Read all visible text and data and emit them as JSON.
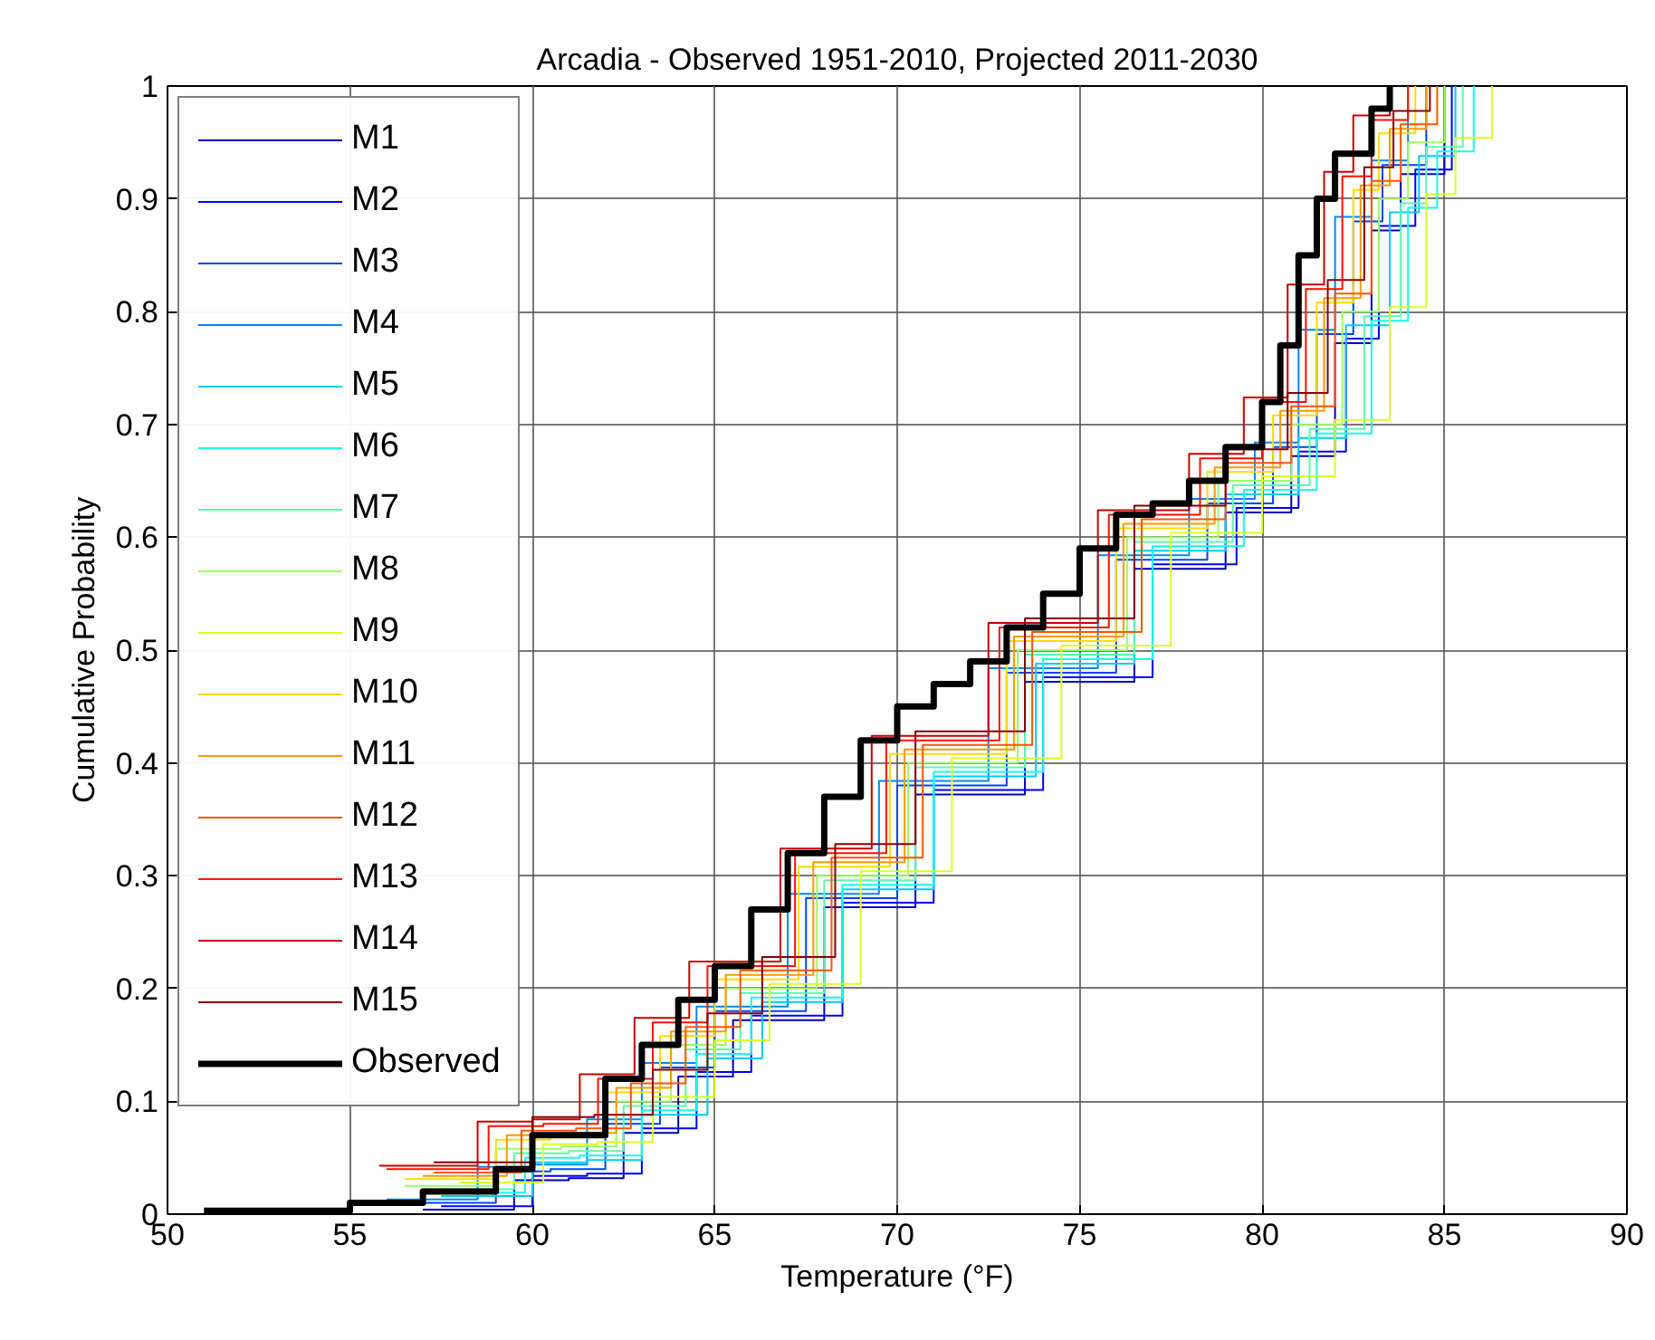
{
  "chart_data": {
    "type": "step",
    "title": "Arcadia - Observed 1951-2010, Projected 2011-2030",
    "xlabel": "Temperature (°F)",
    "ylabel": "Cumulative Probability",
    "xlim": [
      50,
      90
    ],
    "xticks": [
      50,
      55,
      60,
      65,
      70,
      75,
      80,
      85,
      90
    ],
    "ylim": [
      0,
      1
    ],
    "yticks": [
      0,
      0.1,
      0.2,
      0.3,
      0.4,
      0.5,
      0.6,
      0.7,
      0.8,
      0.9,
      1
    ],
    "grid": true,
    "legend": "top left",
    "line_style": "solid",
    "series": [
      {
        "name": "M1",
        "color": "#0000bb",
        "x": [
          57,
          59.5,
          61,
          62.5,
          64,
          65.5,
          68,
          70.5,
          73.5,
          76.5,
          79,
          80.8,
          82,
          83,
          83.8,
          85
        ],
        "values": [
          0.004,
          0.03,
          0.032,
          0.072,
          0.122,
          0.172,
          0.272,
          0.372,
          0.472,
          0.572,
          0.622,
          0.672,
          0.772,
          0.872,
          0.922,
          1
        ]
      },
      {
        "name": "M2",
        "color": "#0000ff",
        "x": [
          57.5,
          60,
          61.5,
          63,
          64.5,
          66,
          68.5,
          71,
          74,
          77,
          79.3,
          81,
          82.3,
          83.2,
          84.2,
          85.2
        ],
        "values": [
          0.007,
          0.034,
          0.036,
          0.076,
          0.126,
          0.176,
          0.276,
          0.376,
          0.476,
          0.576,
          0.626,
          0.676,
          0.776,
          0.876,
          0.926,
          1
        ]
      },
      {
        "name": "M3",
        "color": "#0044ff",
        "x": [
          56.5,
          59,
          60.5,
          62,
          63.5,
          65,
          67.5,
          70,
          73,
          76,
          78.5,
          80.3,
          81.5,
          82.5,
          83.3,
          84.5
        ],
        "values": [
          0.01,
          0.038,
          0.04,
          0.08,
          0.13,
          0.18,
          0.28,
          0.38,
          0.48,
          0.58,
          0.63,
          0.68,
          0.78,
          0.88,
          0.93,
          1
        ]
      },
      {
        "name": "M4",
        "color": "#0088ff",
        "x": [
          56,
          58.5,
          60,
          61.5,
          63,
          64.5,
          67,
          69.5,
          72.5,
          75.5,
          78,
          79.8,
          81,
          82,
          83,
          84
        ],
        "values": [
          0.013,
          0.042,
          0.044,
          0.084,
          0.134,
          0.184,
          0.284,
          0.384,
          0.484,
          0.584,
          0.634,
          0.684,
          0.784,
          0.884,
          0.934,
          1
        ]
      },
      {
        "name": "M5",
        "color": "#00ccff",
        "x": [
          57.5,
          60,
          61.5,
          63,
          64.8,
          66.3,
          68.5,
          71,
          73.8,
          76.5,
          79,
          81,
          82.3,
          83.5,
          84.3,
          85.3
        ],
        "values": [
          0.016,
          0.046,
          0.048,
          0.088,
          0.138,
          0.188,
          0.288,
          0.388,
          0.488,
          0.588,
          0.638,
          0.688,
          0.788,
          0.888,
          0.938,
          1
        ]
      },
      {
        "name": "M6",
        "color": "#11ffee",
        "x": [
          57.5,
          59.8,
          61.3,
          63,
          64.5,
          66,
          68.5,
          71,
          74,
          77,
          79.5,
          81.5,
          83,
          84,
          84.8,
          85.8
        ],
        "values": [
          0.019,
          0.05,
          0.052,
          0.092,
          0.142,
          0.192,
          0.292,
          0.392,
          0.492,
          0.592,
          0.642,
          0.692,
          0.792,
          0.892,
          0.942,
          1
        ]
      },
      {
        "name": "M7",
        "color": "#55ffaa",
        "x": [
          57,
          59.5,
          61,
          62.5,
          64.2,
          65.7,
          68,
          70.5,
          73.5,
          76.5,
          79.2,
          81.3,
          82.8,
          83.8,
          84.5,
          85.5
        ],
        "values": [
          0.022,
          0.054,
          0.056,
          0.096,
          0.146,
          0.196,
          0.296,
          0.396,
          0.496,
          0.596,
          0.646,
          0.696,
          0.796,
          0.896,
          0.946,
          1
        ]
      },
      {
        "name": "M8",
        "color": "#99ff66",
        "x": [
          56.5,
          59,
          60.8,
          62.3,
          63.8,
          65.3,
          67.8,
          70.3,
          73.3,
          76.3,
          78.8,
          80.8,
          82.2,
          83.2,
          84,
          85
        ],
        "values": [
          0.025,
          0.058,
          0.06,
          0.1,
          0.15,
          0.2,
          0.3,
          0.4,
          0.5,
          0.6,
          0.65,
          0.7,
          0.8,
          0.9,
          0.95,
          1
        ]
      },
      {
        "name": "M9",
        "color": "#ddff22",
        "x": [
          58,
          60.3,
          61.8,
          63.3,
          65,
          66.5,
          69,
          71.5,
          74.5,
          77.5,
          80,
          82,
          83.5,
          84.5,
          85.3,
          86.3
        ],
        "values": [
          0.028,
          0.062,
          0.064,
          0.104,
          0.154,
          0.204,
          0.304,
          0.404,
          0.504,
          0.604,
          0.654,
          0.704,
          0.804,
          0.904,
          0.954,
          1
        ]
      },
      {
        "name": "M10",
        "color": "#ffdd00",
        "x": [
          56.5,
          59,
          60.5,
          62,
          63.5,
          65,
          67.3,
          69.8,
          73,
          76,
          78.5,
          80.3,
          81.5,
          82.5,
          83.2,
          84.2
        ],
        "values": [
          0.031,
          0.066,
          0.068,
          0.108,
          0.158,
          0.208,
          0.308,
          0.408,
          0.508,
          0.608,
          0.658,
          0.708,
          0.808,
          0.908,
          0.958,
          1
        ]
      },
      {
        "name": "M11",
        "color": "#ff9900",
        "x": [
          57,
          59.3,
          60.8,
          62.3,
          63.8,
          65.3,
          67.7,
          70.2,
          73.2,
          76.2,
          78.7,
          80.5,
          81.7,
          82.7,
          83.5,
          84.5
        ],
        "values": [
          0.034,
          0.07,
          0.072,
          0.112,
          0.162,
          0.212,
          0.312,
          0.412,
          0.512,
          0.612,
          0.662,
          0.712,
          0.812,
          0.912,
          0.962,
          1
        ]
      },
      {
        "name": "M12",
        "color": "#ff5500",
        "x": [
          57.3,
          59.7,
          61.2,
          62.7,
          64.2,
          65.7,
          68.2,
          70.7,
          73.7,
          76.7,
          79,
          80.8,
          82,
          83,
          83.8,
          84.8
        ],
        "values": [
          0.037,
          0.074,
          0.076,
          0.116,
          0.166,
          0.216,
          0.316,
          0.416,
          0.516,
          0.616,
          0.666,
          0.716,
          0.816,
          0.916,
          0.966,
          1
        ]
      },
      {
        "name": "M13",
        "color": "#ff1100",
        "x": [
          56,
          58.8,
          60.3,
          61.8,
          63.3,
          64.8,
          67.2,
          69.7,
          72.8,
          75.8,
          78.3,
          80,
          81.2,
          82.2,
          83,
          84
        ],
        "values": [
          0.04,
          0.078,
          0.08,
          0.12,
          0.17,
          0.22,
          0.32,
          0.42,
          0.52,
          0.62,
          0.67,
          0.72,
          0.82,
          0.92,
          0.97,
          1
        ]
      },
      {
        "name": "M14",
        "color": "#cc0000",
        "x": [
          55.8,
          58.5,
          60,
          61.3,
          62.8,
          64.3,
          66.8,
          69.3,
          72.5,
          75.5,
          78,
          79.5,
          80.7,
          81.7,
          82.5,
          83.5
        ],
        "values": [
          0.043,
          0.082,
          0.084,
          0.124,
          0.174,
          0.224,
          0.324,
          0.424,
          0.524,
          0.624,
          0.674,
          0.724,
          0.824,
          0.924,
          0.974,
          1
        ]
      },
      {
        "name": "M15",
        "color": "#880000",
        "x": [
          57.3,
          60,
          61.7,
          63.3,
          64.8,
          66.3,
          68.3,
          70.5,
          73.5,
          76.5,
          79,
          80.7,
          81.8,
          82.8,
          83.6,
          84.6
        ],
        "values": [
          0.046,
          0.086,
          0.088,
          0.128,
          0.178,
          0.228,
          0.328,
          0.428,
          0.528,
          0.628,
          0.678,
          0.728,
          0.828,
          0.928,
          0.978,
          1
        ]
      },
      {
        "name": "Observed",
        "color": "#000000",
        "x": [
          51,
          55,
          57,
          59,
          60,
          62,
          63,
          64,
          65,
          66,
          67,
          68,
          69,
          70,
          71,
          72,
          73,
          74,
          75,
          76,
          77,
          78,
          79,
          80,
          80.5,
          81,
          81.5,
          82,
          83,
          83.5
        ],
        "values": [
          0.003,
          0.01,
          0.02,
          0.04,
          0.07,
          0.12,
          0.15,
          0.19,
          0.22,
          0.27,
          0.32,
          0.37,
          0.42,
          0.45,
          0.47,
          0.49,
          0.52,
          0.55,
          0.59,
          0.62,
          0.63,
          0.65,
          0.68,
          0.72,
          0.77,
          0.85,
          0.9,
          0.94,
          0.98,
          1
        ]
      }
    ]
  }
}
